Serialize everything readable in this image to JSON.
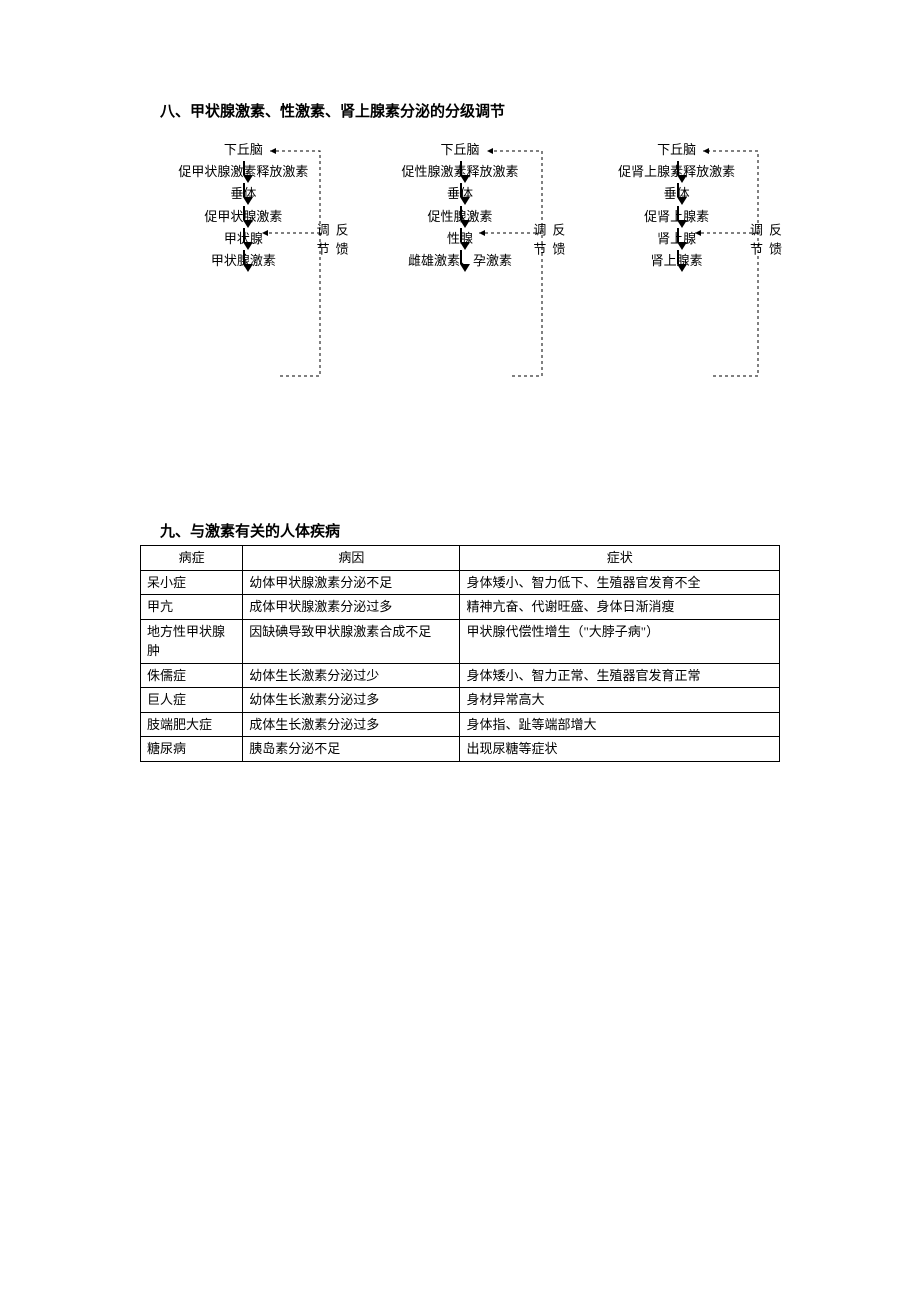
{
  "section8": {
    "title": "八、甲状腺激素、性激素、肾上腺素分泌的分级调节",
    "feedback_label": "反馈调节",
    "diagrams": [
      {
        "nodes": [
          "下丘脑",
          "促甲状腺激素释放激素",
          "垂体",
          "促甲状腺激素",
          "甲状腺",
          "甲状腺激素"
        ]
      },
      {
        "nodes": [
          "下丘脑",
          "促性腺激素释放激素",
          "垂体",
          "促性腺激素",
          "性腺",
          "雌雄激素、孕激素"
        ]
      },
      {
        "nodes": [
          "下丘脑",
          "促肾上腺素释放激素",
          "垂体",
          "促肾上腺素",
          "肾上腺",
          "肾上腺素"
        ]
      }
    ],
    "diagram_style": {
      "node_fontsize": 13,
      "arrow_color": "#000000",
      "dashed_color": "#000000",
      "dash_pattern": "3,3"
    }
  },
  "section9": {
    "title": "九、与激素有关的人体疾病",
    "columns": [
      "病症",
      "病因",
      "症状"
    ],
    "col_widths": [
      "16%",
      "34%",
      "50%"
    ],
    "rows": [
      [
        "呆小症",
        "幼体甲状腺激素分泌不足",
        "身体矮小、智力低下、生殖器官发育不全"
      ],
      [
        "甲亢",
        "成体甲状腺激素分泌过多",
        "精神亢奋、代谢旺盛、身体日渐消瘦"
      ],
      [
        "地方性甲状腺肿",
        "因缺碘导致甲状腺激素合成不足",
        "甲状腺代偿性增生（\"大脖子病\"）"
      ],
      [
        "侏儒症",
        "幼体生长激素分泌过少",
        "身体矮小、智力正常、生殖器官发育正常"
      ],
      [
        "巨人症",
        "幼体生长激素分泌过多",
        "身材异常高大"
      ],
      [
        "肢端肥大症",
        "成体生长激素分泌过多",
        "身体指、趾等端部增大"
      ],
      [
        "糖尿病",
        "胰岛素分泌不足",
        "出现尿糖等症状"
      ]
    ],
    "table_style": {
      "border_color": "#000000",
      "fontsize": 13,
      "header_align": "center",
      "cell_align": "left"
    }
  }
}
